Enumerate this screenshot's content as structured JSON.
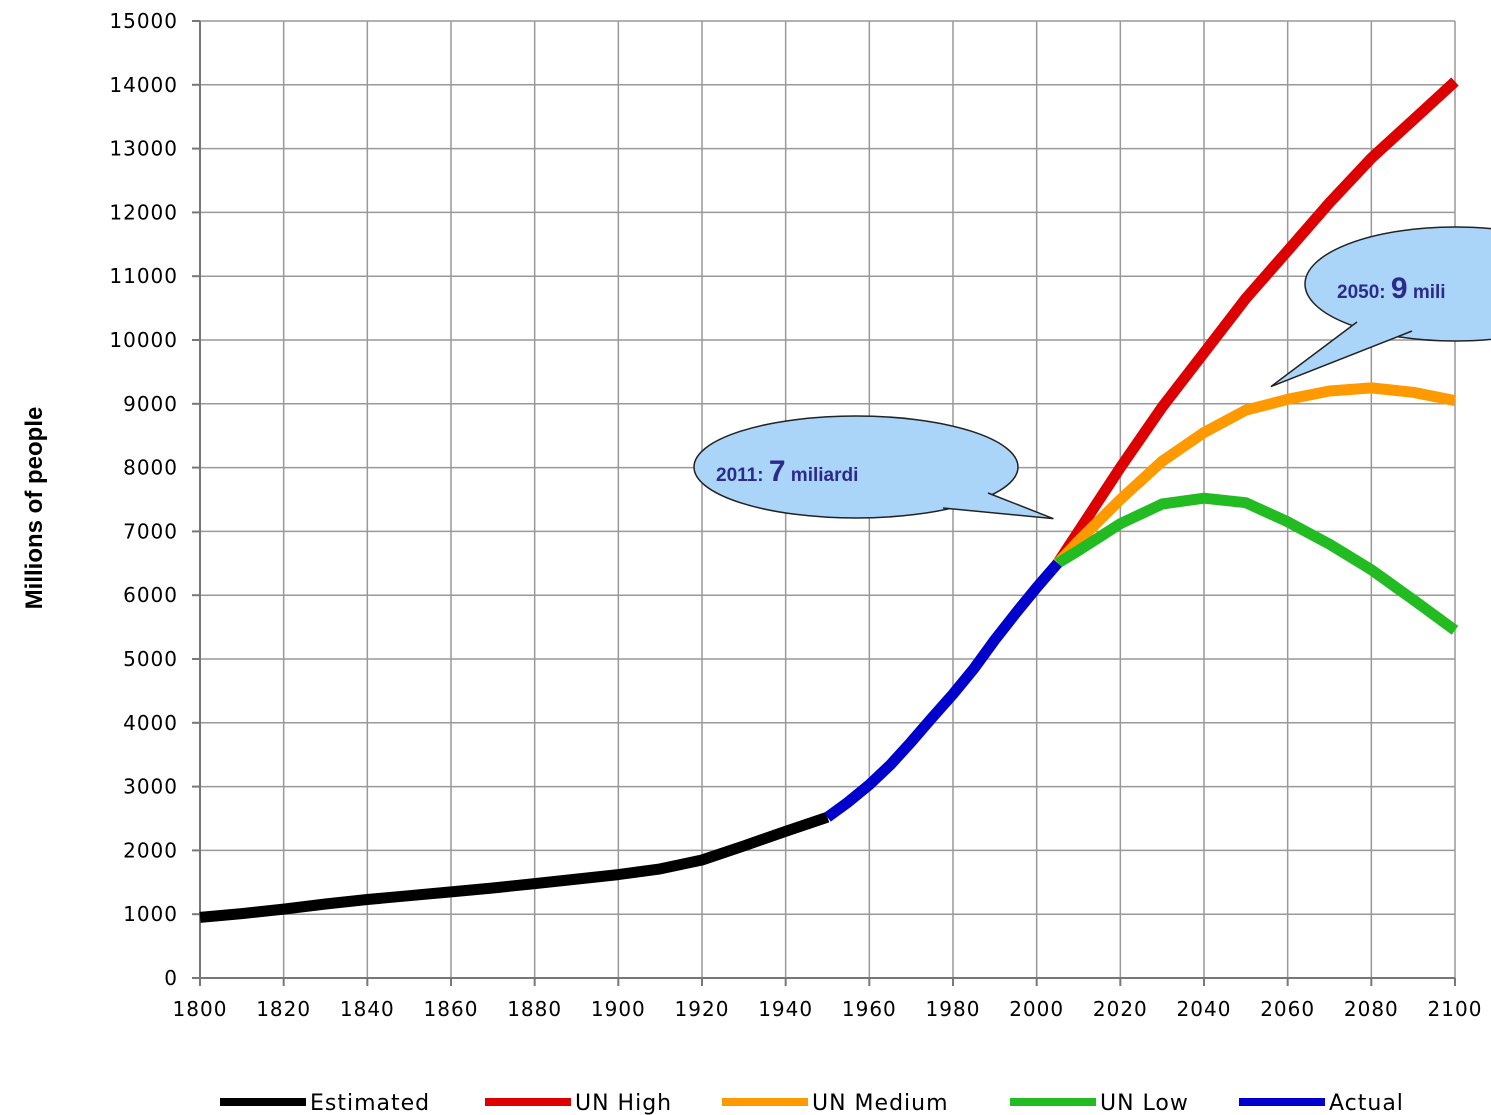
{
  "chart_data": {
    "type": "line",
    "title": "",
    "xlabel": "",
    "ylabel": "Millions of people",
    "xlim": [
      1800,
      2100
    ],
    "ylim": [
      0,
      15000
    ],
    "x_ticks": [
      "1800",
      "1820",
      "1840",
      "1860",
      "1880",
      "1900",
      "1920",
      "1940",
      "1960",
      "1980",
      "2000",
      "2020",
      "2040",
      "2060",
      "2080",
      "2100"
    ],
    "y_ticks": [
      "0",
      "1000",
      "2000",
      "3000",
      "4000",
      "5000",
      "6000",
      "7000",
      "8000",
      "9000",
      "10000",
      "11000",
      "12000",
      "13000",
      "14000",
      "15000"
    ],
    "grid": true,
    "legend_position": "bottom",
    "series": [
      {
        "name": "Estimated",
        "color": "#000000",
        "points": [
          [
            1800,
            950
          ],
          [
            1810,
            1010
          ],
          [
            1820,
            1080
          ],
          [
            1830,
            1160
          ],
          [
            1840,
            1230
          ],
          [
            1850,
            1290
          ],
          [
            1860,
            1350
          ],
          [
            1870,
            1410
          ],
          [
            1880,
            1480
          ],
          [
            1890,
            1550
          ],
          [
            1900,
            1620
          ],
          [
            1910,
            1710
          ],
          [
            1920,
            1850
          ],
          [
            1930,
            2070
          ],
          [
            1940,
            2300
          ],
          [
            1950,
            2520
          ]
        ]
      },
      {
        "name": "Actual",
        "color": "#0000cc",
        "points": [
          [
            1950,
            2520
          ],
          [
            1955,
            2760
          ],
          [
            1960,
            3030
          ],
          [
            1965,
            3340
          ],
          [
            1970,
            3700
          ],
          [
            1975,
            4080
          ],
          [
            1980,
            4450
          ],
          [
            1985,
            4850
          ],
          [
            1990,
            5300
          ],
          [
            1995,
            5720
          ],
          [
            2000,
            6120
          ],
          [
            2005,
            6500
          ]
        ]
      },
      {
        "name": "UN High",
        "color": "#dd0000",
        "points": [
          [
            2005,
            6500
          ],
          [
            2010,
            7000
          ],
          [
            2020,
            8000
          ],
          [
            2030,
            8950
          ],
          [
            2040,
            9800
          ],
          [
            2050,
            10650
          ],
          [
            2060,
            11400
          ],
          [
            2070,
            12150
          ],
          [
            2080,
            12850
          ],
          [
            2090,
            13450
          ],
          [
            2100,
            14050
          ]
        ]
      },
      {
        "name": "UN Medium",
        "color": "#ff9900",
        "points": [
          [
            2005,
            6500
          ],
          [
            2010,
            6850
          ],
          [
            2020,
            7500
          ],
          [
            2030,
            8100
          ],
          [
            2040,
            8550
          ],
          [
            2050,
            8900
          ],
          [
            2060,
            9070
          ],
          [
            2070,
            9200
          ],
          [
            2080,
            9250
          ],
          [
            2090,
            9180
          ],
          [
            2100,
            9050
          ]
        ]
      },
      {
        "name": "UN Low",
        "color": "#22bb22",
        "points": [
          [
            2005,
            6500
          ],
          [
            2010,
            6700
          ],
          [
            2020,
            7120
          ],
          [
            2030,
            7430
          ],
          [
            2040,
            7520
          ],
          [
            2050,
            7450
          ],
          [
            2060,
            7150
          ],
          [
            2070,
            6800
          ],
          [
            2080,
            6400
          ],
          [
            2090,
            5930
          ],
          [
            2100,
            5450
          ]
        ]
      }
    ],
    "legend_order": [
      "Estimated",
      "UN High",
      "UN Medium",
      "UN Low",
      "Actual"
    ],
    "annotations": [
      {
        "year_text": "2011: ",
        "big_text": "7",
        "suffix_text": " miliardi",
        "pointer": [
          2004,
          7200
        ]
      },
      {
        "year_text": "2050: ",
        "big_text": "9",
        "suffix_text": " mili",
        "pointer": [
          2056,
          9270
        ]
      }
    ],
    "bubble_fill": "#aad4f8",
    "grid_color": "#999999"
  }
}
